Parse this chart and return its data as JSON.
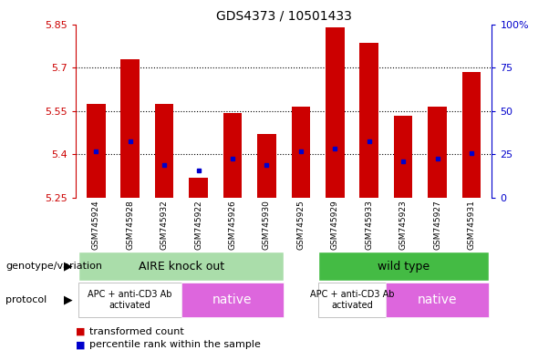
{
  "title": "GDS4373 / 10501433",
  "samples": [
    "GSM745924",
    "GSM745928",
    "GSM745932",
    "GSM745922",
    "GSM745926",
    "GSM745930",
    "GSM745925",
    "GSM745929",
    "GSM745933",
    "GSM745923",
    "GSM745927",
    "GSM745931"
  ],
  "bar_bottoms": [
    5.25,
    5.25,
    5.25,
    5.25,
    5.25,
    5.25,
    5.25,
    5.25,
    5.25,
    5.25,
    5.25,
    5.25
  ],
  "bar_tops": [
    5.575,
    5.73,
    5.575,
    5.32,
    5.545,
    5.47,
    5.565,
    5.84,
    5.785,
    5.535,
    5.565,
    5.685
  ],
  "blue_marks": [
    5.41,
    5.445,
    5.365,
    5.345,
    5.385,
    5.365,
    5.41,
    5.42,
    5.445,
    5.375,
    5.385,
    5.405
  ],
  "ylim_left": [
    5.25,
    5.85
  ],
  "ylim_right": [
    0,
    100
  ],
  "yticks_left": [
    5.25,
    5.4,
    5.55,
    5.7,
    5.85
  ],
  "yticks_right": [
    0,
    25,
    50,
    75,
    100
  ],
  "ytick_labels_left": [
    "5.25",
    "5.4",
    "5.55",
    "5.7",
    "5.85"
  ],
  "ytick_labels_right": [
    "0",
    "25",
    "50",
    "75",
    "100%"
  ],
  "bar_color": "#cc0000",
  "blue_color": "#0000cc",
  "grid_color": "black",
  "left_yaxis_color": "#cc0000",
  "right_yaxis_color": "#0000cc",
  "genotype_labels": [
    "AIRE knock out",
    "wild type"
  ],
  "genotype_color_light": "#aaddaa",
  "genotype_color_dark": "#44bb44",
  "protocol_labels_white": [
    "APC + anti-CD3 Ab\nactivated",
    "APC + anti-CD3 Ab\nactivated"
  ],
  "protocol_labels_pink": [
    "native",
    "native"
  ],
  "protocol_color_white": "#ffffff",
  "protocol_color_pink": "#dd66dd",
  "legend_red_label": "transformed count",
  "legend_blue_label": "percentile rank within the sample",
  "genotype_label": "genotype/variation",
  "protocol_label": "protocol",
  "bg_gray": "#c8c8c8"
}
